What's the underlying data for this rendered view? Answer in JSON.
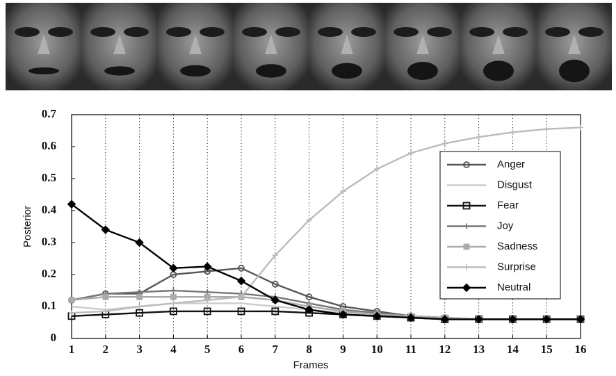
{
  "chart_data": {
    "type": "line",
    "xlabel": "Frames",
    "ylabel": "Posterior",
    "x": [
      1,
      2,
      3,
      4,
      5,
      6,
      7,
      8,
      9,
      10,
      11,
      12,
      13,
      14,
      15,
      16
    ],
    "xlim": [
      1,
      16
    ],
    "xticks": [
      1,
      2,
      3,
      4,
      5,
      6,
      7,
      8,
      9,
      10,
      11,
      12,
      13,
      14,
      15,
      16
    ],
    "ylim": [
      0,
      0.7
    ],
    "yticks": [
      0,
      0.1,
      0.2,
      0.3,
      0.4,
      0.5,
      0.6,
      0.7
    ],
    "xgrid": true,
    "legend": "right",
    "series": [
      {
        "name": "Anger",
        "color": "#555555",
        "marker": "circle",
        "values": [
          0.12,
          0.14,
          0.14,
          0.2,
          0.21,
          0.22,
          0.17,
          0.13,
          0.1,
          0.085,
          0.07,
          0.065,
          0.06,
          0.06,
          0.06,
          0.06
        ]
      },
      {
        "name": "Disgust",
        "color": "#cccccc",
        "marker": "none",
        "values": [
          0.1,
          0.09,
          0.1,
          0.11,
          0.11,
          0.11,
          0.1,
          0.09,
          0.08,
          0.07,
          0.065,
          0.06,
          0.06,
          0.06,
          0.06,
          0.06
        ]
      },
      {
        "name": "Fear",
        "color": "#111111",
        "marker": "square",
        "values": [
          0.07,
          0.075,
          0.08,
          0.085,
          0.085,
          0.085,
          0.085,
          0.08,
          0.075,
          0.07,
          0.065,
          0.06,
          0.06,
          0.06,
          0.06,
          0.06
        ]
      },
      {
        "name": "Joy",
        "color": "#777777",
        "marker": "plus",
        "values": [
          0.12,
          0.14,
          0.145,
          0.15,
          0.145,
          0.14,
          0.13,
          0.11,
          0.09,
          0.08,
          0.07,
          0.065,
          0.06,
          0.06,
          0.06,
          0.06
        ]
      },
      {
        "name": "Sadness",
        "color": "#aaaaaa",
        "marker": "filled-square",
        "values": [
          0.12,
          0.13,
          0.13,
          0.13,
          0.13,
          0.13,
          0.12,
          0.1,
          0.085,
          0.075,
          0.07,
          0.065,
          0.06,
          0.06,
          0.06,
          0.06
        ]
      },
      {
        "name": "Surprise",
        "color": "#bbbbbb",
        "marker": "plus",
        "values": [
          0.08,
          0.085,
          0.1,
          0.11,
          0.12,
          0.13,
          0.26,
          0.37,
          0.46,
          0.53,
          0.58,
          0.61,
          0.63,
          0.645,
          0.655,
          0.66
        ]
      },
      {
        "name": "Neutral",
        "color": "#000000",
        "marker": "diamond",
        "values": [
          0.42,
          0.34,
          0.3,
          0.22,
          0.225,
          0.18,
          0.12,
          0.09,
          0.075,
          0.07,
          0.065,
          0.06,
          0.06,
          0.06,
          0.06,
          0.06
        ]
      }
    ]
  }
}
